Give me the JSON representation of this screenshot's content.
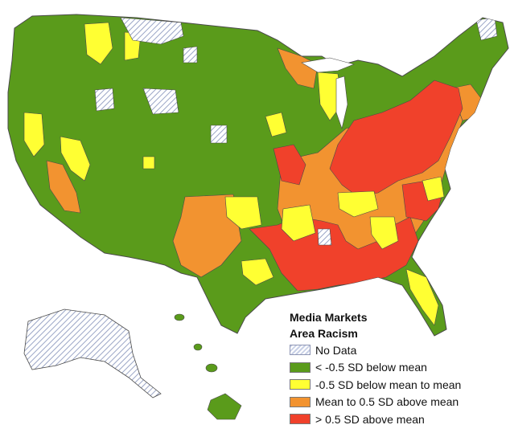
{
  "legend": {
    "title_line1": "Media Markets",
    "title_line2": "Area Racism",
    "items": [
      {
        "label": "No Data",
        "color": "#c8d0e6",
        "pattern": "hatch"
      },
      {
        "label": "< -0.5 SD below mean",
        "color": "#5a9b1b"
      },
      {
        "label": "-0.5 SD below mean to mean",
        "color": "#ffff33"
      },
      {
        "label": "Mean to 0.5 SD above mean",
        "color": "#f29330"
      },
      {
        "label": "> 0.5 SD above mean",
        "color": "#f0412b"
      }
    ]
  },
  "colors": {
    "no_data": "#c8d0e6",
    "low": "#5a9b1b",
    "below_mean": "#ffff33",
    "above_mean": "#f29330",
    "high": "#f0412b",
    "border": "#4a4a4a"
  }
}
